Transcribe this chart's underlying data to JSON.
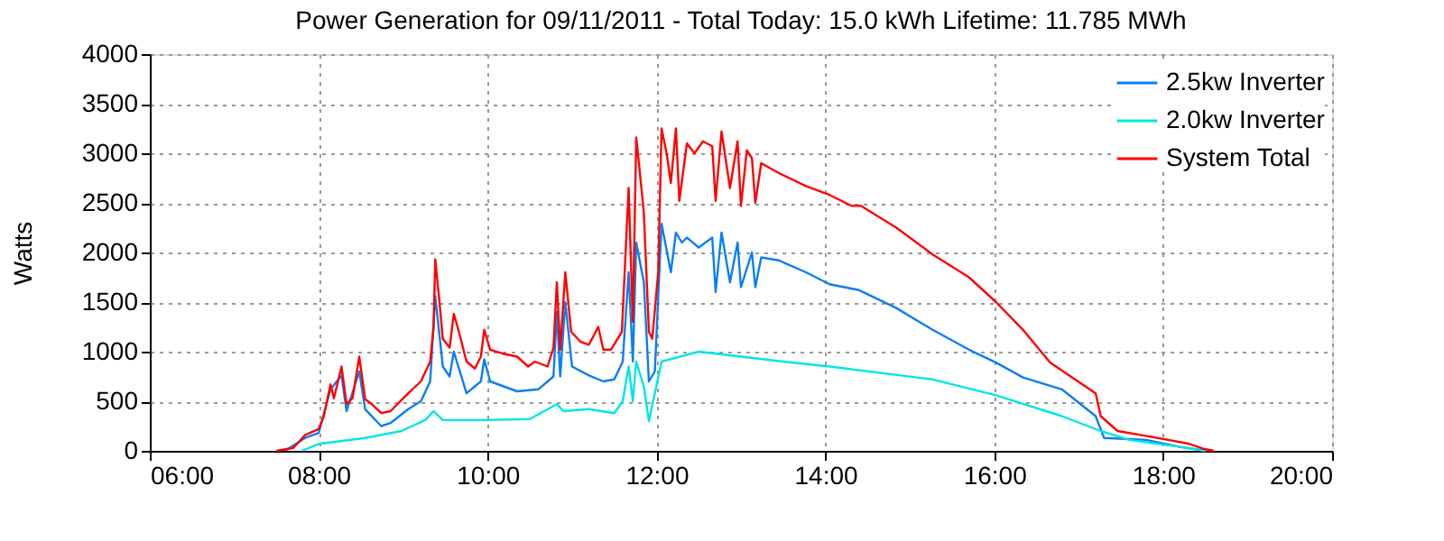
{
  "chart_data": {
    "type": "line",
    "title": "Power Generation for 09/11/2011 - Total Today: 15.0 kWh   Lifetime: 11.785 MWh",
    "ylabel": "Watts",
    "xlim": [
      6,
      20
    ],
    "xticks": [
      {
        "value": 6,
        "label": "06:00"
      },
      {
        "value": 8,
        "label": "08:00"
      },
      {
        "value": 10,
        "label": "10:00"
      },
      {
        "value": 12,
        "label": "12:00"
      },
      {
        "value": 14,
        "label": "14:00"
      },
      {
        "value": 16,
        "label": "16:00"
      },
      {
        "value": 18,
        "label": "18:00"
      },
      {
        "value": 20,
        "label": "20:00"
      }
    ],
    "ylim": [
      0,
      4000
    ],
    "yticks": [
      0,
      500,
      1000,
      1500,
      2000,
      2500,
      3000,
      3500,
      4000
    ],
    "grid": true,
    "legend": "top right",
    "marker": "none",
    "line_style": "solid",
    "series": [
      {
        "name": "2.5kw Inverter",
        "color": "#0a7ff0",
        "x": [
          7.6,
          7.84,
          8.0,
          8.14,
          8.27,
          8.33,
          8.48,
          8.55,
          8.74,
          8.85,
          9.06,
          9.21,
          9.32,
          9.38,
          9.47,
          9.55,
          9.6,
          9.75,
          9.92,
          9.96,
          10.03,
          10.35,
          10.6,
          10.78,
          10.82,
          10.86,
          10.92,
          11.0,
          11.2,
          11.37,
          11.5,
          11.6,
          11.67,
          11.72,
          11.76,
          11.85,
          11.91,
          11.98,
          12.06,
          12.17,
          12.23,
          12.3,
          12.36,
          12.5,
          12.66,
          12.7,
          12.77,
          12.87,
          12.96,
          13.0,
          13.13,
          13.17,
          13.24,
          13.45,
          13.77,
          14.05,
          14.4,
          14.84,
          15.27,
          15.7,
          16.02,
          16.34,
          16.8,
          17.2,
          17.3,
          17.8,
          18.2,
          18.5
        ],
        "values": [
          0,
          130,
          180,
          620,
          760,
          400,
          800,
          420,
          250,
          280,
          420,
          500,
          700,
          1560,
          850,
          750,
          1000,
          580,
          700,
          920,
          700,
          600,
          620,
          750,
          1400,
          750,
          1500,
          850,
          760,
          700,
          720,
          900,
          1800,
          900,
          2100,
          1700,
          700,
          800,
          2290,
          1800,
          2200,
          2100,
          2150,
          2050,
          2150,
          1600,
          2200,
          1700,
          2100,
          1650,
          2000,
          1650,
          1950,
          1920,
          1800,
          1680,
          1620,
          1440,
          1220,
          1020,
          890,
          740,
          620,
          350,
          130,
          110,
          40,
          0
        ]
      },
      {
        "name": "2.0kw Inverter",
        "color": "#00e5e5",
        "x": [
          7.8,
          8.0,
          8.55,
          8.98,
          9.26,
          9.36,
          9.47,
          9.96,
          10.5,
          10.82,
          10.9,
          11.2,
          11.5,
          11.6,
          11.67,
          11.72,
          11.76,
          11.85,
          11.91,
          12.06,
          12.5,
          13.0,
          13.5,
          14.05,
          15.27,
          16.02,
          16.8,
          17.26,
          17.6,
          18.2,
          18.5
        ],
        "values": [
          0,
          70,
          130,
          200,
          310,
          400,
          310,
          310,
          320,
          470,
          400,
          420,
          380,
          500,
          850,
          500,
          900,
          650,
          300,
          900,
          1000,
          950,
          900,
          850,
          720,
          560,
          350,
          200,
          110,
          40,
          0
        ]
      },
      {
        "name": "System Total",
        "color": "#ff0000",
        "x": [
          7.5,
          7.7,
          7.84,
          8.0,
          8.06,
          8.14,
          8.18,
          8.27,
          8.33,
          8.4,
          8.48,
          8.55,
          8.63,
          8.74,
          8.85,
          9.06,
          9.21,
          9.32,
          9.36,
          9.38,
          9.43,
          9.47,
          9.55,
          9.6,
          9.66,
          9.75,
          9.85,
          9.92,
          9.96,
          10.03,
          10.18,
          10.35,
          10.48,
          10.56,
          10.71,
          10.78,
          10.82,
          10.86,
          10.92,
          10.99,
          11.1,
          11.2,
          11.31,
          11.37,
          11.46,
          11.59,
          11.67,
          11.72,
          11.76,
          11.8,
          11.85,
          11.91,
          11.95,
          12.02,
          12.06,
          12.12,
          12.17,
          12.23,
          12.27,
          12.36,
          12.45,
          12.55,
          12.66,
          12.7,
          12.77,
          12.87,
          12.96,
          13.0,
          13.07,
          13.13,
          13.17,
          13.24,
          13.45,
          13.77,
          14.05,
          14.31,
          14.42,
          14.84,
          15.27,
          15.7,
          16.02,
          16.34,
          16.66,
          17.2,
          17.26,
          17.46,
          17.73,
          18.06,
          18.31,
          18.48,
          18.6
        ],
        "values": [
          0,
          30,
          160,
          220,
          350,
          670,
          530,
          850,
          470,
          530,
          950,
          520,
          470,
          380,
          400,
          580,
          700,
          900,
          1250,
          1930,
          1500,
          1130,
          1040,
          1380,
          1200,
          900,
          830,
          950,
          1220,
          1020,
          980,
          950,
          850,
          900,
          850,
          1040,
          1700,
          1020,
          1800,
          1200,
          1100,
          1070,
          1250,
          1020,
          1020,
          1200,
          2650,
          1300,
          3160,
          2830,
          2400,
          1200,
          1130,
          1800,
          3250,
          3000,
          2700,
          3250,
          2520,
          3100,
          3000,
          3120,
          3070,
          2520,
          3220,
          2650,
          3120,
          2470,
          3030,
          2950,
          2500,
          2900,
          2800,
          2670,
          2580,
          2470,
          2470,
          2250,
          1980,
          1750,
          1500,
          1220,
          890,
          580,
          350,
          200,
          160,
          110,
          70,
          20,
          0
        ]
      }
    ]
  }
}
